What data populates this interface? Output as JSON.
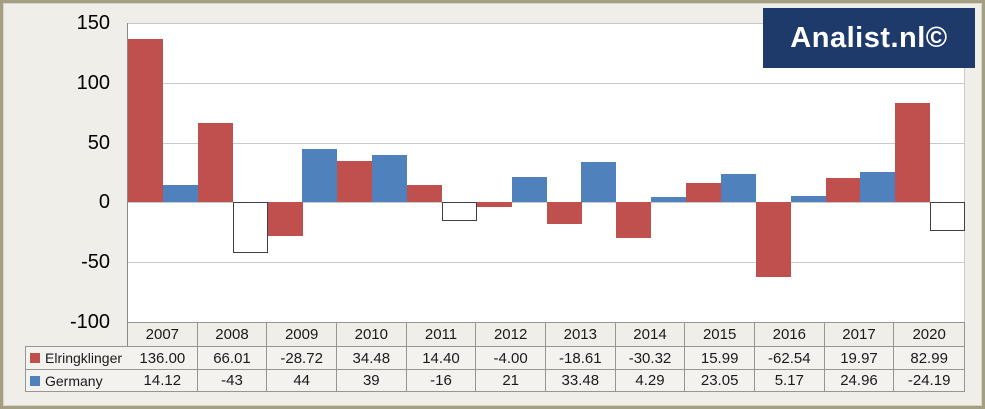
{
  "logo": {
    "text": "Analist.nl©"
  },
  "colors": {
    "elringklinger_red": "#C0504D",
    "germany_blue": "#4F81BD",
    "logo_navy": "#1E3A6B",
    "chart_background": "#F0EEE9",
    "plot_background": "#FFFFFF",
    "frame_border": "#A49E82",
    "gridline": "#C9C9C9",
    "table_border": "#999590",
    "negative_bar_fill": "#FFFFFF",
    "negative_bar_border": "#404040"
  },
  "chart_data": {
    "type": "bar",
    "title": "",
    "categories": [
      "2007",
      "2008",
      "2009",
      "2010",
      "2011",
      "2012",
      "2013",
      "2014",
      "2015",
      "2016",
      "2017",
      "2020"
    ],
    "series": [
      {
        "name": "Elringklinger",
        "color": "#C0504D",
        "values": [
          136.0,
          66.01,
          -28.72,
          34.48,
          14.4,
          -4.0,
          -18.61,
          -30.32,
          15.99,
          -62.54,
          19.97,
          82.99
        ]
      },
      {
        "name": "Germany",
        "color": "#4F81BD",
        "negative_rendering": "white-with-dark-outline",
        "values": [
          14.12,
          -43,
          44,
          39,
          -16,
          21,
          33.48,
          4.29,
          23.05,
          5.17,
          24.96,
          -24.19
        ]
      }
    ],
    "ylim": [
      -100,
      150
    ],
    "yticks": [
      150,
      100,
      50,
      0,
      -50,
      -100
    ],
    "grid": true,
    "legend_position": "left-of-data-table"
  },
  "data_table": {
    "header_years": [
      "2007",
      "2008",
      "2009",
      "2010",
      "2011",
      "2012",
      "2013",
      "2014",
      "2015",
      "2016",
      "2017",
      "2020"
    ],
    "rows": [
      {
        "label": "Elringklinger",
        "swatch_color": "#C0504D",
        "values": [
          "136.00",
          "66.01",
          "-28.72",
          "34.48",
          "14.40",
          "-4.00",
          "-18.61",
          "-30.32",
          "15.99",
          "-62.54",
          "19.97",
          "82.99"
        ]
      },
      {
        "label": "Germany",
        "swatch_color": "#4F81BD",
        "values": [
          "14.12",
          "-43",
          "44",
          "39",
          "-16",
          "21",
          "33.48",
          "4.29",
          "23.05",
          "5.17",
          "24.96",
          "-24.19"
        ]
      }
    ]
  }
}
